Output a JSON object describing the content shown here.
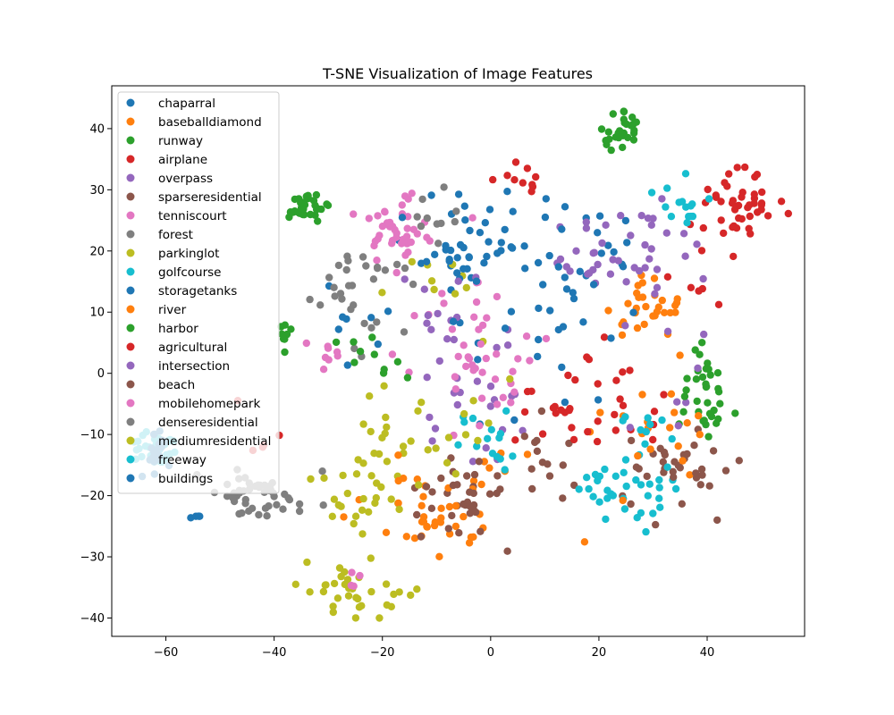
{
  "chart_data": {
    "type": "scatter",
    "title": "T-SNE Visualization of Image Features",
    "xlabel": "",
    "ylabel": "",
    "xlim": [
      -70,
      58
    ],
    "ylim": [
      -43,
      47
    ],
    "xticks": [
      -60,
      -40,
      -20,
      0,
      20,
      40
    ],
    "yticks": [
      -40,
      -30,
      -20,
      -10,
      0,
      10,
      20,
      30,
      40
    ],
    "xtick_labels": [
      "−60",
      "−40",
      "−20",
      "0",
      "20",
      "40"
    ],
    "ytick_labels": [
      "−40",
      "−30",
      "−20",
      "−10",
      "0",
      "10",
      "20",
      "30",
      "40"
    ],
    "grid": false,
    "legend_position": "upper-left",
    "series": [
      {
        "name": "chaparral",
        "color": "#1f77b4",
        "clusters": [
          [
            -5,
            18,
            8,
            6,
            30
          ],
          [
            -25,
            8,
            3,
            4,
            8
          ],
          [
            20,
            22,
            5,
            4,
            10
          ]
        ]
      },
      {
        "name": "baseballdiamond",
        "color": "#ff7f0e",
        "clusters": [
          [
            28,
            10,
            3,
            2.5,
            30
          ],
          [
            -10,
            -25,
            4,
            2.5,
            20
          ],
          [
            0,
            -18,
            6,
            5,
            10
          ]
        ]
      },
      {
        "name": "runway",
        "color": "#2ca02c",
        "clusters": [
          [
            24,
            40,
            2,
            2,
            30
          ],
          [
            -34,
            27,
            2,
            1,
            30
          ],
          [
            40,
            -5,
            2,
            3,
            20
          ],
          [
            -38,
            6,
            1,
            1,
            8
          ]
        ]
      },
      {
        "name": "airplane",
        "color": "#d62728",
        "clusters": [
          [
            46,
            28,
            4,
            3,
            40
          ],
          [
            5,
            32,
            2,
            1.5,
            10
          ],
          [
            22,
            -5,
            5,
            4,
            15
          ],
          [
            40,
            20,
            4,
            6,
            10
          ]
        ]
      },
      {
        "name": "overpass",
        "color": "#9467bd",
        "clusters": [
          [
            20,
            20,
            6,
            4,
            20
          ],
          [
            -2,
            -5,
            6,
            4,
            20
          ],
          [
            30,
            0,
            5,
            8,
            10
          ]
        ]
      },
      {
        "name": "sparseresidential",
        "color": "#8c564b",
        "clusters": [
          [
            35,
            -15,
            5,
            4,
            20
          ],
          [
            -5,
            -20,
            5,
            4,
            20
          ],
          [
            10,
            -15,
            5,
            3,
            15
          ]
        ]
      },
      {
        "name": "tenniscourt",
        "color": "#e377c2",
        "clusters": [
          [
            -18,
            24,
            3,
            3,
            40
          ],
          [
            -5,
            5,
            8,
            8,
            25
          ],
          [
            -30,
            3,
            2,
            2,
            8
          ]
        ]
      },
      {
        "name": "forest",
        "color": "#7f7f7f",
        "clusters": [
          [
            -45,
            -20,
            3,
            2,
            30
          ],
          [
            -25,
            12,
            4,
            5,
            20
          ],
          [
            -10,
            25,
            3,
            3,
            10
          ]
        ]
      },
      {
        "name": "parkinglot",
        "color": "#bcbd22",
        "clusters": [
          [
            -25,
            -36,
            4,
            2.5,
            35
          ],
          [
            -20,
            -15,
            3,
            8,
            20
          ],
          [
            -8,
            15,
            4,
            4,
            10
          ]
        ]
      },
      {
        "name": "golfcourse",
        "color": "#17becf",
        "clusters": [
          [
            25,
            -20,
            5,
            3,
            25
          ],
          [
            35,
            28,
            3,
            2,
            15
          ],
          [
            0,
            -12,
            4,
            3,
            15
          ]
        ]
      },
      {
        "name": "storagetanks",
        "color": "#1f77b4",
        "clusters": [
          [
            10,
            10,
            10,
            8,
            30
          ],
          [
            -5,
            20,
            5,
            4,
            10
          ]
        ]
      },
      {
        "name": "river",
        "color": "#ff7f0e",
        "clusters": [
          [
            30,
            -10,
            6,
            5,
            20
          ],
          [
            -15,
            -20,
            5,
            4,
            15
          ]
        ]
      },
      {
        "name": "harbor",
        "color": "#2ca02c",
        "clusters": [
          [
            40,
            0,
            3,
            4,
            15
          ],
          [
            -20,
            2,
            4,
            2,
            10
          ]
        ]
      },
      {
        "name": "agricultural",
        "color": "#d62728",
        "clusters": [
          [
            15,
            -5,
            6,
            5,
            20
          ],
          [
            -40,
            -10,
            3,
            3,
            5
          ]
        ]
      },
      {
        "name": "intersection",
        "color": "#9467bd",
        "clusters": [
          [
            30,
            20,
            5,
            5,
            20
          ],
          [
            -10,
            10,
            5,
            5,
            15
          ]
        ]
      },
      {
        "name": "beach",
        "color": "#8c564b",
        "clusters": [
          [
            -5,
            -20,
            4,
            3,
            15
          ],
          [
            35,
            -17,
            4,
            3,
            15
          ]
        ]
      },
      {
        "name": "mobilehomepark",
        "color": "#e377c2",
        "clusters": [
          [
            0,
            0,
            6,
            6,
            20
          ],
          [
            -25,
            -32,
            1,
            1,
            4
          ]
        ]
      },
      {
        "name": "denseresidential",
        "color": "#7f7f7f",
        "clusters": [
          [
            -40,
            -20,
            4,
            2,
            20
          ],
          [
            -20,
            15,
            4,
            4,
            10
          ]
        ]
      },
      {
        "name": "mediumresidential",
        "color": "#bcbd22",
        "clusters": [
          [
            -25,
            -20,
            4,
            3,
            20
          ],
          [
            -10,
            -10,
            5,
            5,
            15
          ]
        ]
      },
      {
        "name": "freeway",
        "color": "#17becf",
        "clusters": [
          [
            -62,
            -12,
            2,
            2,
            40
          ],
          [
            30,
            -10,
            4,
            3,
            10
          ],
          [
            20,
            -18,
            4,
            2,
            10
          ]
        ]
      },
      {
        "name": "buildings",
        "color": "#1f77b4",
        "clusters": [
          [
            -62,
            -13,
            1.5,
            2,
            20
          ],
          [
            -55,
            -23,
            1,
            0.8,
            4
          ],
          [
            0,
            10,
            6,
            6,
            10
          ]
        ]
      }
    ]
  }
}
